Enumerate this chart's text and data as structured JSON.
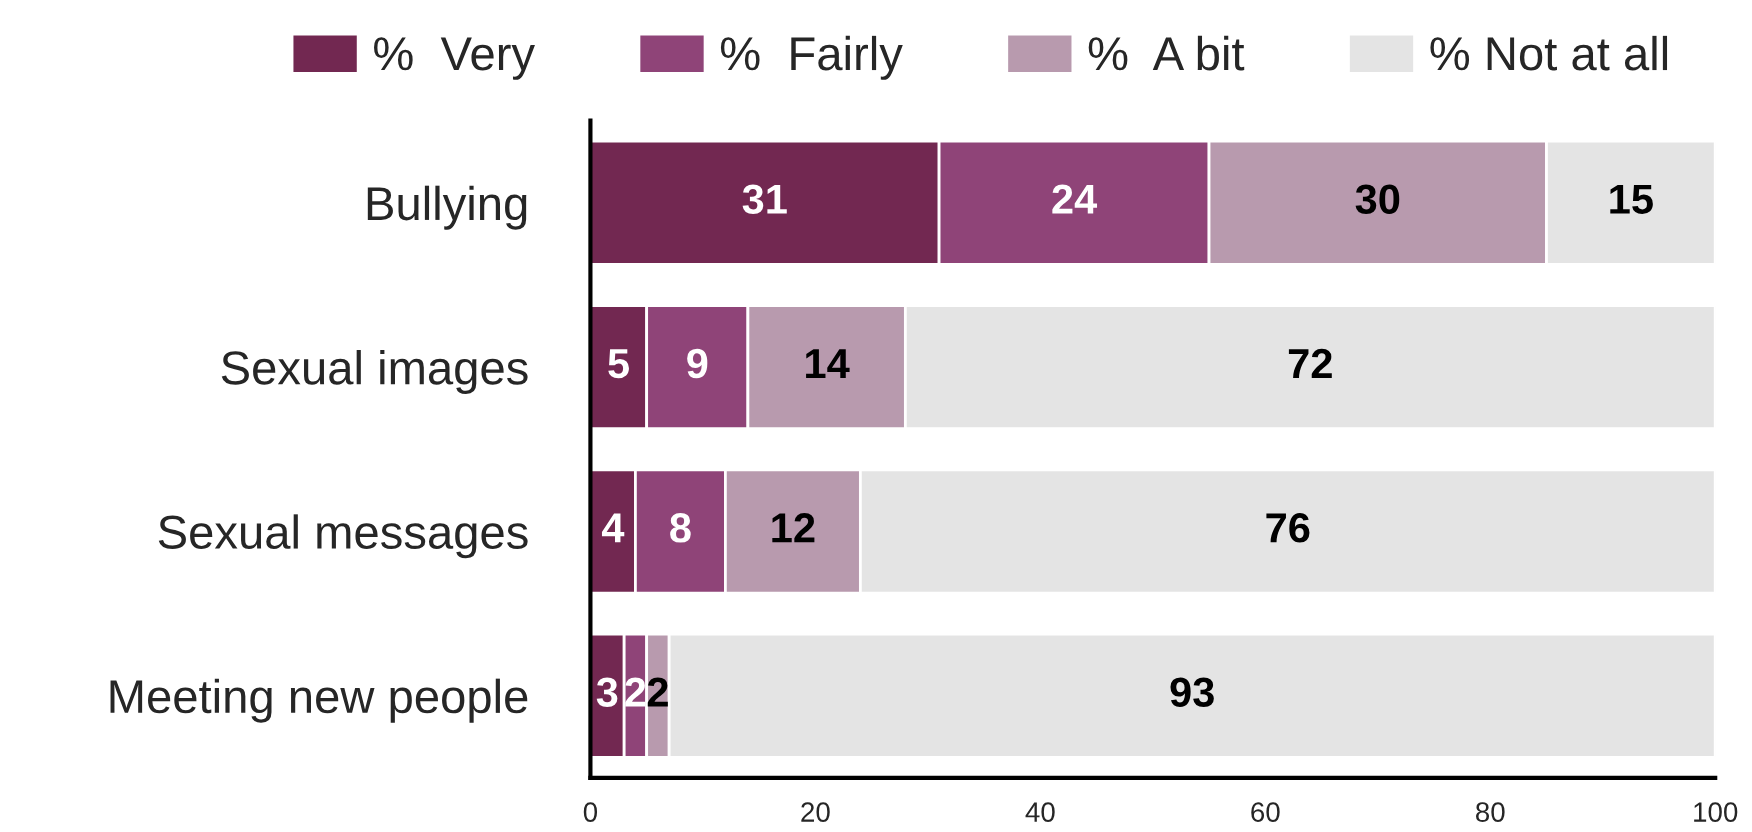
{
  "chart_data": {
    "type": "bar",
    "orientation": "horizontal",
    "stacked": true,
    "data_labels": true,
    "legend": "top",
    "grid": false,
    "categories": [
      "Bullying",
      "Sexual images",
      "Sexual messages",
      "Meeting new people"
    ],
    "series": [
      {
        "name": "%  Very",
        "color": "#722851",
        "values": [
          31,
          5,
          4,
          3
        ]
      },
      {
        "name": "%  Fairly",
        "color": "#8f4478",
        "values": [
          24,
          9,
          8,
          2
        ]
      },
      {
        "name": "%  A bit",
        "color": "#b89aae",
        "values": [
          30,
          14,
          12,
          2
        ]
      },
      {
        "name": "% Not at all",
        "color": "#e4e4e4",
        "values": [
          15,
          72,
          76,
          93
        ]
      }
    ],
    "xlim": [
      0,
      100
    ],
    "xticks": [
      0,
      20,
      40,
      60,
      80,
      100
    ]
  }
}
